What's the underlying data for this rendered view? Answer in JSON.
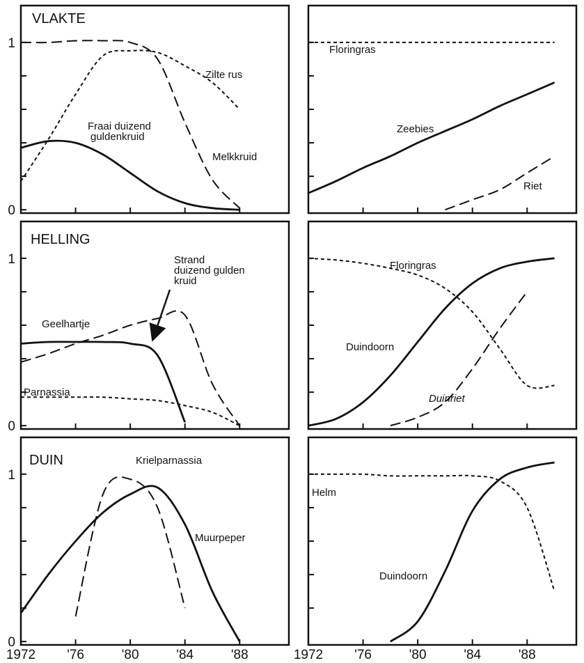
{
  "chart_data": [
    {
      "type": "line",
      "title": "VLAKTE",
      "x": [
        1972,
        1974,
        1976,
        1978,
        1980,
        1982,
        1984,
        1986,
        1988,
        1990
      ],
      "xlim": [
        1972,
        1991.6
      ],
      "ylim": [
        -0.02,
        1.22
      ],
      "xticks": [
        1976,
        1980,
        1984,
        1988
      ],
      "yticks": [
        0,
        1
      ],
      "minor_yticks": [
        0.2,
        0.4,
        0.6,
        0.8
      ],
      "series": [
        {
          "name": "Zilte rus",
          "color": "#111111",
          "dash": "short",
          "values": [
            0.17,
            0.42,
            0.69,
            0.92,
            0.95,
            0.94,
            0.86,
            0.76,
            0.6,
            null
          ]
        },
        {
          "name": "Fraai duizend guldenkruid",
          "color": "#111111",
          "dash": "solid",
          "values": [
            0.37,
            0.41,
            0.4,
            0.33,
            0.22,
            0.11,
            0.04,
            0.01,
            0,
            null
          ]
        },
        {
          "name": "Melkkruid",
          "color": "#111111",
          "dash": "long",
          "values": [
            1,
            1,
            1.01,
            1.01,
            1,
            0.9,
            0.52,
            0.18,
            0.01,
            null
          ]
        }
      ]
    },
    {
      "type": "line",
      "x": [
        1972,
        1974,
        1976,
        1978,
        1980,
        1982,
        1984,
        1986,
        1988,
        1990
      ],
      "xlim": [
        1972,
        1991.6
      ],
      "ylim": [
        -0.02,
        1.22
      ],
      "xticks": [
        1976,
        1980,
        1984,
        1988
      ],
      "minor_yticks": [
        0.2,
        0.4,
        0.6,
        0.8,
        1
      ],
      "series": [
        {
          "name": "Floringras",
          "color": "#111111",
          "dash": "short",
          "values": [
            1,
            1,
            1,
            1,
            1,
            1,
            1,
            1,
            1,
            1
          ]
        },
        {
          "name": "Zeebies",
          "color": "#111111",
          "dash": "solid",
          "values": [
            0.1,
            0.17,
            0.25,
            0.32,
            0.4,
            0.47,
            0.54,
            0.62,
            0.69,
            0.76
          ]
        },
        {
          "name": "Riet",
          "color": "#111111",
          "dash": "long",
          "values": [
            null,
            null,
            null,
            null,
            null,
            0,
            0.06,
            0.12,
            0.22,
            0.32
          ]
        }
      ]
    },
    {
      "type": "line",
      "title": "HELLING",
      "x": [
        1972,
        1974,
        1976,
        1978,
        1980,
        1982,
        1984,
        1986,
        1988,
        1990
      ],
      "xlim": [
        1972,
        1991.6
      ],
      "ylim": [
        -0.02,
        1.22
      ],
      "xticks": [
        1976,
        1980,
        1984,
        1988
      ],
      "yticks": [
        0,
        1
      ],
      "minor_yticks": [
        0.2,
        0.4,
        0.6,
        0.8
      ],
      "series": [
        {
          "name": "Strand duizend gulden kruid",
          "color": "#111111",
          "dash": "long",
          "values": [
            0.38,
            0.43,
            0.49,
            0.54,
            0.6,
            0.64,
            0.66,
            0.25,
            0,
            null
          ]
        },
        {
          "name": "Geelhartje",
          "color": "#111111",
          "dash": "solid",
          "values": [
            0.49,
            0.5,
            0.5,
            0.5,
            0.49,
            0.42,
            0.02,
            null,
            null,
            null
          ]
        },
        {
          "name": "Parnassia",
          "color": "#111111",
          "dash": "short",
          "values": [
            0.17,
            0.17,
            0.17,
            0.17,
            0.16,
            0.15,
            0.12,
            0.08,
            0,
            null
          ]
        }
      ]
    },
    {
      "type": "line",
      "x": [
        1972,
        1974,
        1976,
        1978,
        1980,
        1982,
        1984,
        1986,
        1988,
        1990
      ],
      "xlim": [
        1972,
        1991.6
      ],
      "ylim": [
        -0.02,
        1.22
      ],
      "xticks": [
        1976,
        1980,
        1984,
        1988
      ],
      "minor_yticks": [
        0.2,
        0.4,
        0.6,
        0.8,
        1
      ],
      "series": [
        {
          "name": "Floringras",
          "color": "#111111",
          "dash": "short",
          "values": [
            1,
            0.99,
            0.97,
            0.94,
            0.9,
            0.82,
            0.68,
            0.46,
            0.24,
            0.24
          ]
        },
        {
          "name": "Duindoorn",
          "color": "#111111",
          "dash": "solid",
          "values": [
            0,
            0.04,
            0.14,
            0.3,
            0.5,
            0.7,
            0.85,
            0.94,
            0.98,
            1
          ]
        },
        {
          "name": "Duinriet",
          "color": "#111111",
          "dash": "long",
          "values": [
            null,
            null,
            null,
            0,
            0.05,
            0.14,
            0.34,
            0.58,
            0.8,
            null
          ]
        }
      ]
    },
    {
      "type": "line",
      "title": "DUIN",
      "x": [
        1972,
        1974,
        1976,
        1978,
        1980,
        1982,
        1984,
        1986,
        1988,
        1990
      ],
      "xlim": [
        1972,
        1991.6
      ],
      "ylim": [
        -0.02,
        1.22
      ],
      "xticks": [
        1972,
        {
          "value": 1976,
          "label": "'76"
        },
        {
          "value": 1980,
          "label": "'80"
        },
        {
          "value": 1984,
          "label": "'84"
        },
        {
          "value": 1988,
          "label": "'88"
        }
      ],
      "yticks": [
        0,
        1
      ],
      "minor_yticks": [
        0.2,
        0.4,
        0.6,
        0.8
      ],
      "series": [
        {
          "name": "Krielparnassia",
          "color": "#111111",
          "dash": "long",
          "values": [
            null,
            null,
            0.15,
            0.88,
            0.97,
            0.8,
            0.2,
            null,
            null,
            null
          ]
        },
        {
          "name": "Muurpeper",
          "color": "#111111",
          "dash": "solid",
          "values": [
            0.17,
            0.4,
            0.6,
            0.77,
            0.88,
            0.92,
            0.7,
            0.3,
            0,
            null
          ]
        }
      ]
    },
    {
      "type": "line",
      "x": [
        1972,
        1974,
        1976,
        1978,
        1980,
        1982,
        1984,
        1986,
        1988,
        1990
      ],
      "xlim": [
        1972,
        1991.6
      ],
      "ylim": [
        -0.02,
        1.22
      ],
      "xticks": [
        1972,
        {
          "value": 1976,
          "label": "'76"
        },
        {
          "value": 1980,
          "label": "'80"
        },
        {
          "value": 1984,
          "label": "'84"
        },
        {
          "value": 1988,
          "label": "'88"
        }
      ],
      "minor_yticks": [
        0.2,
        0.4,
        0.6,
        0.8,
        1
      ],
      "series": [
        {
          "name": "Helm",
          "color": "#111111",
          "dash": "short",
          "values": [
            1,
            1,
            1,
            0.99,
            0.99,
            0.99,
            0.99,
            0.96,
            0.8,
            0.3
          ]
        },
        {
          "name": "Duindoorn",
          "color": "#111111",
          "dash": "solid",
          "values": [
            null,
            null,
            null,
            0,
            0.12,
            0.42,
            0.78,
            0.97,
            1.04,
            1.07
          ]
        }
      ]
    }
  ]
}
